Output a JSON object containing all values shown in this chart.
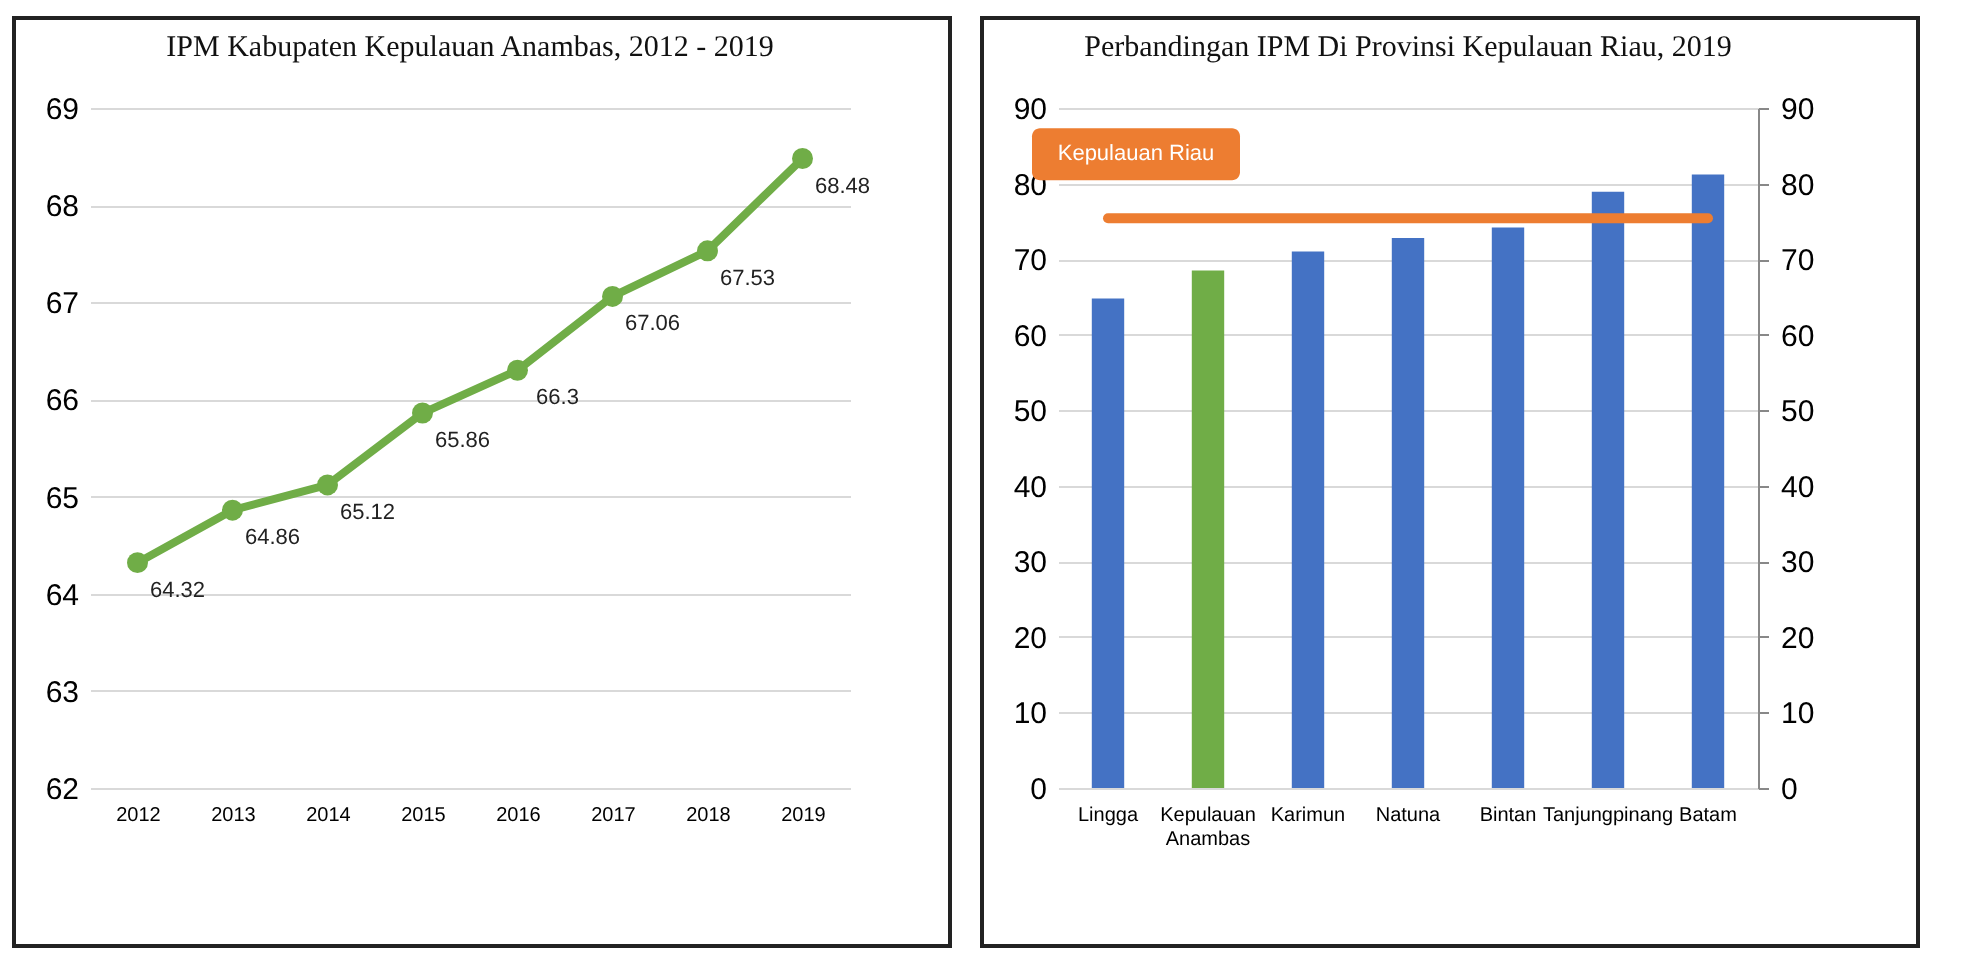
{
  "chart_data": [
    {
      "type": "line",
      "title": "IPM Kabupaten Kepulauan Anambas, 2012 - 2019",
      "categories": [
        "2012",
        "2013",
        "2014",
        "2015",
        "2016",
        "2017",
        "2018",
        "2019"
      ],
      "series": [
        {
          "color": "#70ad47",
          "values": [
            64.32,
            64.86,
            65.12,
            65.86,
            66.3,
            67.06,
            67.53,
            68.48
          ]
        }
      ],
      "ylim": [
        62,
        69
      ],
      "yticks": [
        62,
        63,
        64,
        65,
        66,
        67,
        68,
        69
      ],
      "grid": "y",
      "marker": "circle",
      "data_labels": true
    },
    {
      "type": "bar",
      "title": "Perbandingan IPM Di Provinsi Kepulauan Riau, 2019",
      "categories": [
        "Lingga",
        "Kepulauan Anambas",
        "Karimun",
        "Natuna",
        "Bintan",
        "Tanjungpinang",
        "Batam"
      ],
      "series": [
        {
          "values": [
            64.8,
            68.5,
            71.0,
            72.8,
            74.2,
            78.9,
            81.2
          ],
          "colors": [
            "#4472c4",
            "#70ad47",
            "#4472c4",
            "#4472c4",
            "#4472c4",
            "#4472c4",
            "#4472c4"
          ]
        }
      ],
      "ylim": [
        0,
        90
      ],
      "yticks": [
        0,
        10,
        20,
        30,
        40,
        50,
        60,
        70,
        80,
        90
      ],
      "y2lim": [
        0,
        90
      ],
      "y2ticks": [
        0,
        10,
        20,
        30,
        40,
        50,
        60,
        70,
        80,
        90
      ],
      "grid": "y",
      "ref_lines": [
        {
          "axis": "y",
          "value": 75.4,
          "label": "Kepulauan Riau",
          "color": "#ed7d31"
        }
      ]
    }
  ]
}
